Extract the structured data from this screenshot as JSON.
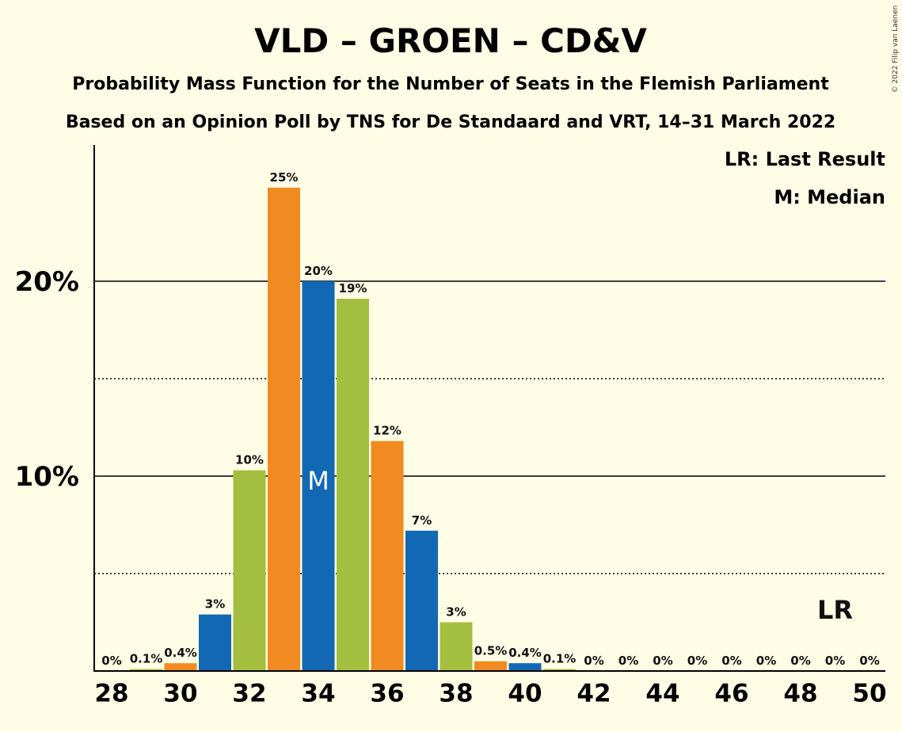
{
  "chart_data": {
    "type": "bar",
    "title": "VLD – GROEN – CD&V",
    "subtitle1": "Probability Mass Function for the Number of Seats in the Flemish Parliament",
    "subtitle2": "Based on an Opinion Poll by TNS for De Standaard and VRT, 14–31 March 2022",
    "copyright": "© 2022 Filip van Laenen",
    "legend": {
      "last_result": "LR: Last Result",
      "median": "M: Median"
    },
    "x": [
      28,
      29,
      30,
      31,
      32,
      33,
      34,
      35,
      36,
      37,
      38,
      39,
      40,
      41,
      42,
      43,
      44,
      45,
      46,
      47,
      48,
      49,
      50
    ],
    "values": [
      0,
      0.1,
      0.4,
      2.9,
      10.3,
      24.8,
      20,
      19.1,
      11.8,
      7.2,
      2.5,
      0.5,
      0.4,
      0.1,
      0,
      0,
      0,
      0,
      0,
      0,
      0,
      0,
      0
    ],
    "labels": [
      "0%",
      "0.1%",
      "0.4%",
      "3%",
      "10%",
      "25%",
      "20%",
      "19%",
      "12%",
      "7%",
      "3%",
      "0.5%",
      "0.4%",
      "0.1%",
      "0%",
      "0%",
      "0%",
      "0%",
      "0%",
      "0%",
      "0%",
      "0%",
      "0%"
    ],
    "x_tick_labels": [
      "28",
      "30",
      "32",
      "34",
      "36",
      "38",
      "40",
      "42",
      "44",
      "46",
      "48",
      "50"
    ],
    "y_tick_labels": [
      {
        "value": 10,
        "label": "10%"
      },
      {
        "value": 20,
        "label": "20%"
      }
    ],
    "ylim": [
      0,
      27
    ],
    "median_seat": 34,
    "median_label": "M",
    "last_result_seat": 49,
    "last_result_label": "LR",
    "colors": {
      "blue": "#1268B3",
      "green": "#A4BE40",
      "orange": "#F18A21",
      "background": "#FFFDE6"
    }
  }
}
